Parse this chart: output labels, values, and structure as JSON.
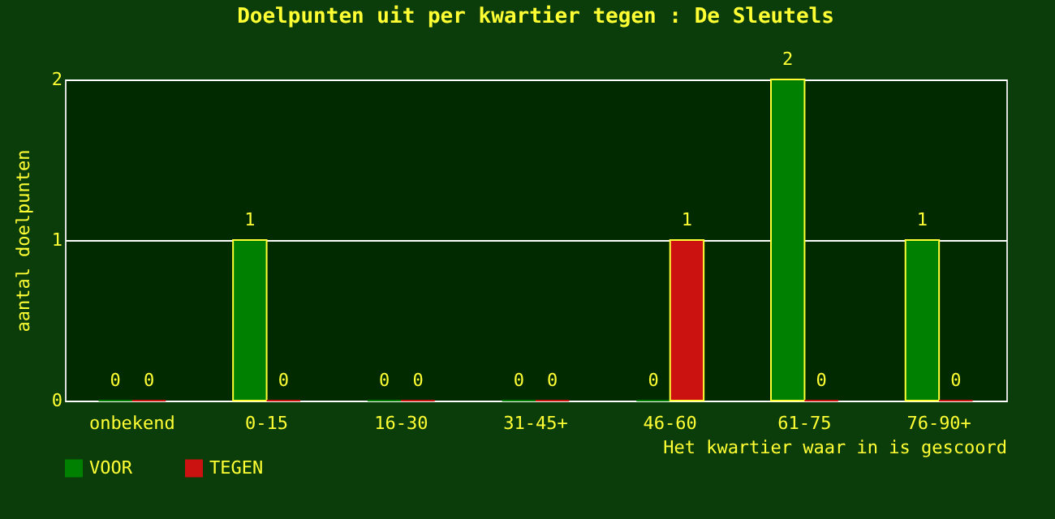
{
  "chart_data": {
    "type": "bar",
    "title": "Doelpunten uit per kwartier tegen : De Sleutels",
    "xlabel": "Het kwartier waar in is gescoord",
    "ylabel": "aantal doelpunten",
    "categories": [
      "onbekend",
      "0-15",
      "16-30",
      "31-45+",
      "46-60",
      "61-75",
      "76-90+"
    ],
    "series": [
      {
        "name": "VOOR",
        "color": "#008000",
        "values": [
          0,
          1,
          0,
          0,
          0,
          2,
          1
        ]
      },
      {
        "name": "TEGEN",
        "color": "#cc1111",
        "values": [
          0,
          0,
          0,
          0,
          1,
          0,
          0
        ]
      }
    ],
    "ylim": [
      0,
      2
    ],
    "yticks": [
      0,
      1,
      2
    ],
    "grid": "y",
    "legend": "bottom",
    "data_labels": true
  }
}
